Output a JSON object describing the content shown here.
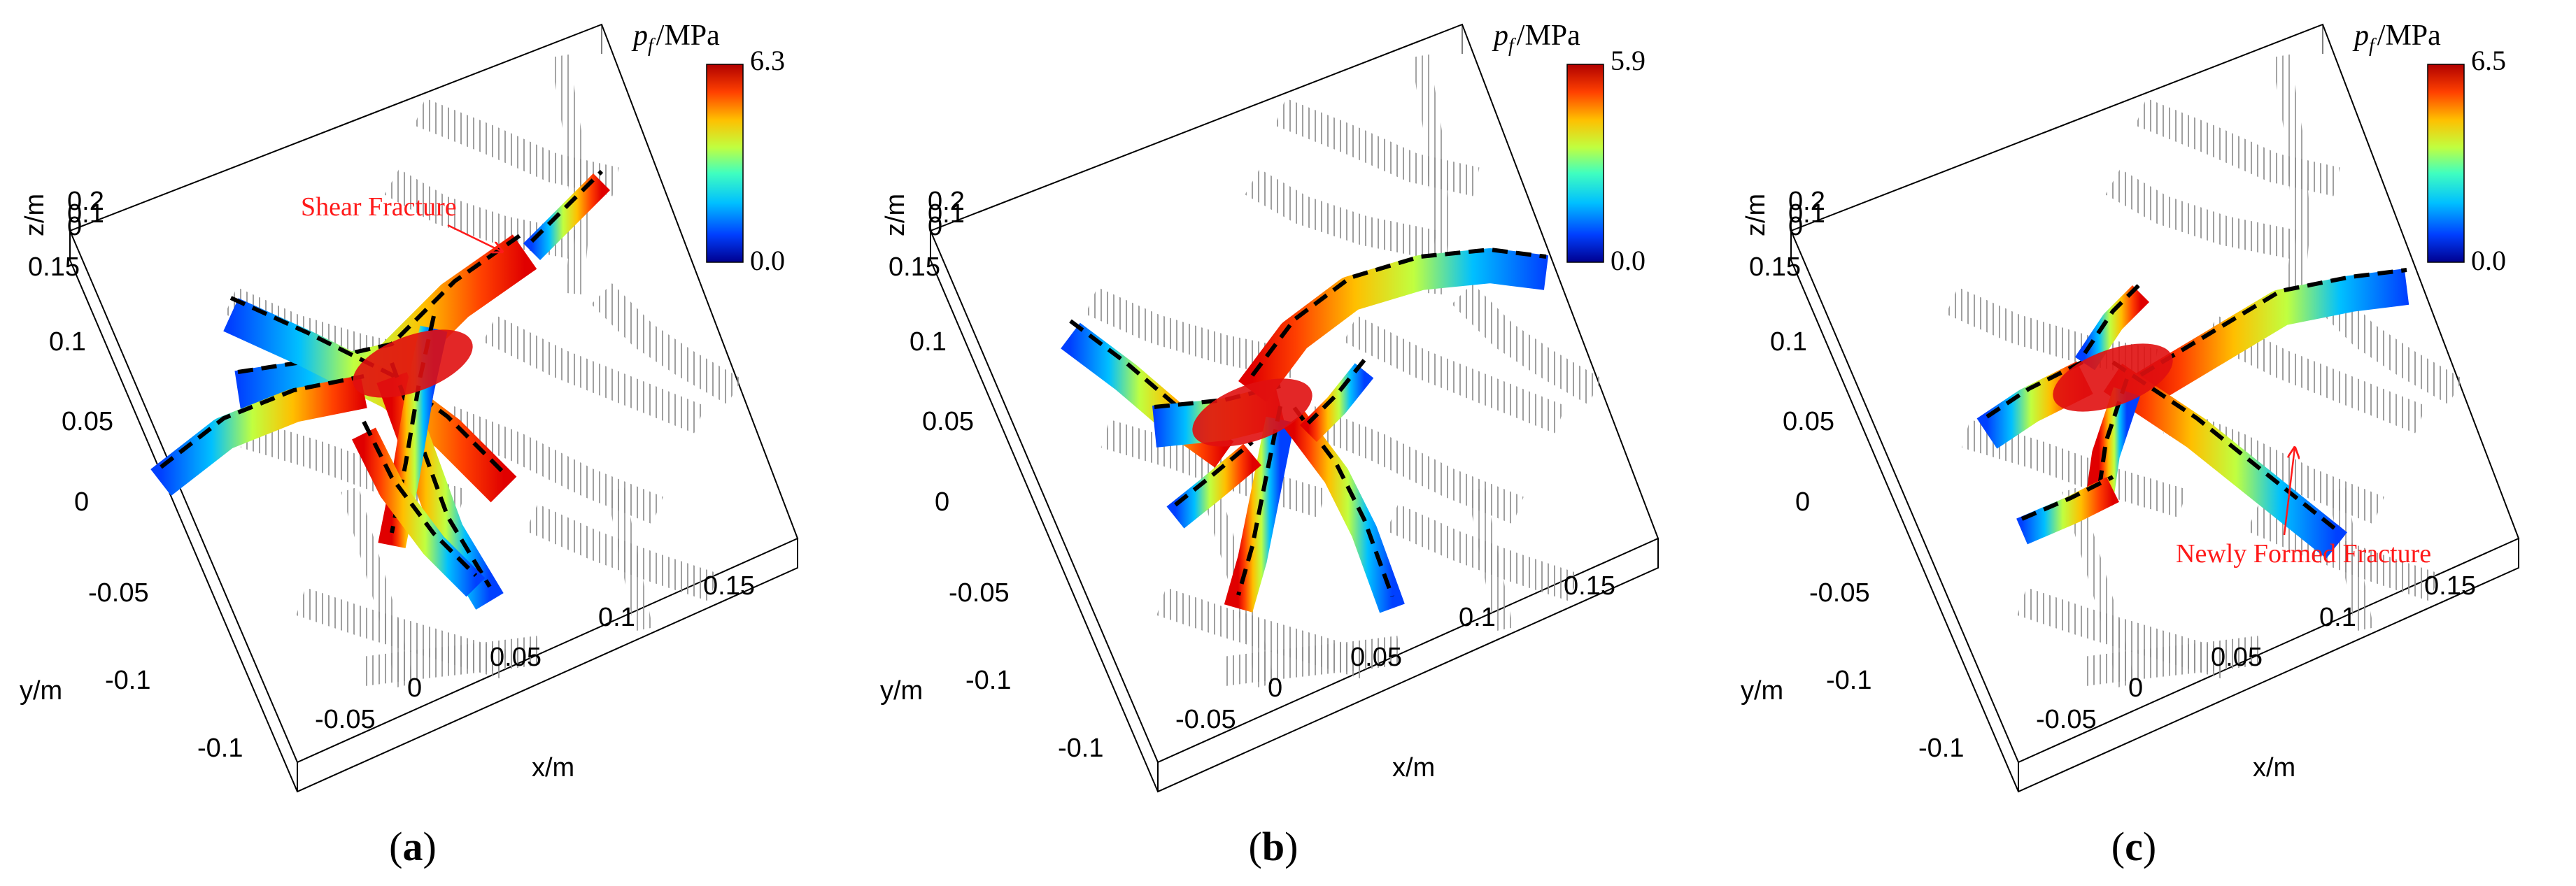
{
  "panels": [
    {
      "id": "a",
      "label": "a",
      "colorbar": {
        "title_var": "p",
        "title_sub": "f",
        "title_unit": "/MPa",
        "max": "6.3",
        "min": "0.0"
      },
      "annotation": "Shear Fracture",
      "axes": {
        "z_label": "z/m",
        "z_ticks": [
          "0.2",
          "0.1",
          "0"
        ],
        "y_label": "y/m",
        "y_ticks": [
          "0.15",
          "0.1",
          "0.05",
          "0",
          "-0.05",
          "-0.1"
        ],
        "x_label": "x/m",
        "x_ticks": [
          "-0.1",
          "-0.05",
          "0",
          "0.05",
          "0.1",
          "0.15"
        ]
      }
    },
    {
      "id": "b",
      "label": "b",
      "colorbar": {
        "title_var": "p",
        "title_sub": "f",
        "title_unit": "/MPa",
        "max": "5.9",
        "min": "0.0"
      },
      "annotation": "",
      "axes": {
        "z_label": "z/m",
        "z_ticks": [
          "0.2",
          "0.1",
          "0"
        ],
        "y_label": "y/m",
        "y_ticks": [
          "0.15",
          "0.1",
          "0.05",
          "0",
          "-0.05",
          "-0.1"
        ],
        "x_label": "x/m",
        "x_ticks": [
          "-0.1",
          "-0.05",
          "0",
          "0.05",
          "0.1",
          "0.15"
        ]
      }
    },
    {
      "id": "c",
      "label": "c",
      "colorbar": {
        "title_var": "p",
        "title_sub": "f",
        "title_unit": "/MPa",
        "max": "6.5",
        "min": "0.0"
      },
      "annotation": "Newly Formed Fracture",
      "axes": {
        "z_label": "z/m",
        "z_ticks": [
          "0.2",
          "0.1",
          "0"
        ],
        "y_label": "y/m",
        "y_ticks": [
          "0.15",
          "0.1",
          "0.05",
          "0",
          "-0.05",
          "-0.1"
        ],
        "x_label": "x/m",
        "x_ticks": [
          "-0.1",
          "-0.05",
          "0",
          "0.05",
          "0.1",
          "0.15"
        ]
      }
    }
  ],
  "colors": {
    "colormap": [
      "#00008f",
      "#0040ff",
      "#00c0ff",
      "#40ffbf",
      "#c0ff40",
      "#ffbf00",
      "#ff4000",
      "#b00000"
    ],
    "annotation": "#ff1a1a",
    "fracture_edge": "#000000",
    "hatch": "#9a9a9a"
  }
}
